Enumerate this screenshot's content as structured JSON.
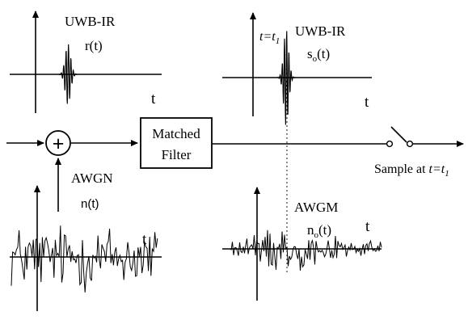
{
  "input_pulse": {
    "title": "UWB-IR",
    "signal": "r(t)",
    "axis": "t"
  },
  "output_pulse": {
    "marker": "t=t",
    "marker_sub": "1",
    "title": "UWB-IR",
    "signal_base": "s",
    "signal_sub": "o",
    "signal_rest": "(t)",
    "axis": "t"
  },
  "adder": {
    "symbol": "+"
  },
  "matched_filter": {
    "line1": "Matched",
    "line2": "Filter"
  },
  "input_noise": {
    "title": "AWGN",
    "signal": "n(t)",
    "axis": "t"
  },
  "output_noise": {
    "title": "AWGM",
    "signal_base": "n",
    "signal_sub": "o",
    "signal_rest": "(t)",
    "axis": "t"
  },
  "sampler": {
    "label": "Sample at ",
    "label_var": "t=t",
    "label_sub": "1"
  }
}
